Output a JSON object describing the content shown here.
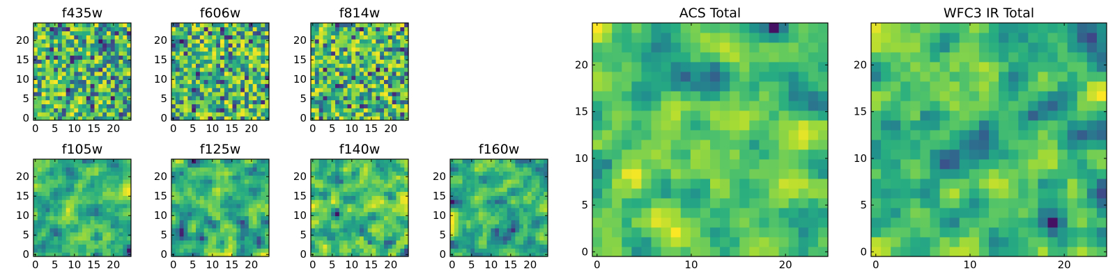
{
  "figure": {
    "background": "#ffffff"
  },
  "chart_data": [
    {
      "type": "heatmap",
      "title": "f435w",
      "grid_size": [
        24,
        24
      ],
      "seed": 11,
      "smoothness": 0,
      "colormap": "viridis",
      "xticks": [
        0,
        5,
        10,
        15,
        20
      ],
      "yticks": [
        0,
        5,
        10,
        15,
        20
      ],
      "xlim": [
        0,
        24
      ],
      "ylim": [
        0,
        24
      ],
      "grid": false
    },
    {
      "type": "heatmap",
      "title": "f606w",
      "grid_size": [
        24,
        24
      ],
      "seed": 23,
      "smoothness": 0,
      "colormap": "viridis",
      "xticks": [
        0,
        5,
        10,
        15,
        20
      ],
      "yticks": [
        0,
        5,
        10,
        15,
        20
      ],
      "xlim": [
        0,
        24
      ],
      "ylim": [
        0,
        24
      ],
      "grid": false
    },
    {
      "type": "heatmap",
      "title": "f814w",
      "grid_size": [
        24,
        24
      ],
      "seed": 37,
      "smoothness": 0,
      "colormap": "viridis",
      "xticks": [
        0,
        5,
        10,
        15,
        20
      ],
      "yticks": [
        0,
        5,
        10,
        15,
        20
      ],
      "xlim": [
        0,
        24
      ],
      "ylim": [
        0,
        24
      ],
      "grid": false
    },
    {
      "type": "heatmap",
      "title": "f105w",
      "grid_size": [
        24,
        24
      ],
      "seed": 41,
      "smoothness": 1,
      "colormap": "viridis",
      "xticks": [
        0,
        5,
        10,
        15,
        20
      ],
      "yticks": [
        0,
        5,
        10,
        15,
        20
      ],
      "xlim": [
        0,
        24
      ],
      "ylim": [
        0,
        24
      ],
      "grid": false
    },
    {
      "type": "heatmap",
      "title": "f125w",
      "grid_size": [
        24,
        24
      ],
      "seed": 53,
      "smoothness": 1,
      "colormap": "viridis",
      "xticks": [
        0,
        5,
        10,
        15,
        20
      ],
      "yticks": [
        0,
        5,
        10,
        15,
        20
      ],
      "xlim": [
        0,
        24
      ],
      "ylim": [
        0,
        24
      ],
      "grid": false
    },
    {
      "type": "heatmap",
      "title": "f140w",
      "grid_size": [
        24,
        24
      ],
      "seed": 67,
      "smoothness": 1,
      "colormap": "viridis",
      "xticks": [
        0,
        5,
        10,
        15,
        20
      ],
      "yticks": [
        0,
        5,
        10,
        15,
        20
      ],
      "xlim": [
        0,
        24
      ],
      "ylim": [
        0,
        24
      ],
      "grid": false
    },
    {
      "type": "heatmap",
      "title": "f160w",
      "grid_size": [
        24,
        24
      ],
      "seed": 79,
      "smoothness": 1,
      "colormap": "viridis",
      "xticks": [
        0,
        5,
        10,
        15,
        20
      ],
      "yticks": [
        0,
        5,
        10,
        15,
        20
      ],
      "xlim": [
        0,
        24
      ],
      "ylim": [
        0,
        24
      ],
      "grid": false
    },
    {
      "type": "heatmap",
      "title": "ACS Total",
      "grid_size": [
        24,
        24
      ],
      "seed": 97,
      "smoothness": 1,
      "colormap": "viridis",
      "xticks": [
        0,
        10,
        20
      ],
      "yticks": [
        0,
        5,
        10,
        15,
        20
      ],
      "xlim": [
        0,
        24
      ],
      "ylim": [
        0,
        24
      ],
      "grid": false
    },
    {
      "type": "heatmap",
      "title": "WFC3 IR Total",
      "grid_size": [
        24,
        24
      ],
      "seed": 113,
      "smoothness": 1,
      "colormap": "viridis",
      "xticks": [
        0,
        10,
        20
      ],
      "yticks": [
        0,
        5,
        10,
        15,
        20
      ],
      "xlim": [
        0,
        24
      ],
      "ylim": [
        0,
        24
      ],
      "grid": false
    }
  ]
}
